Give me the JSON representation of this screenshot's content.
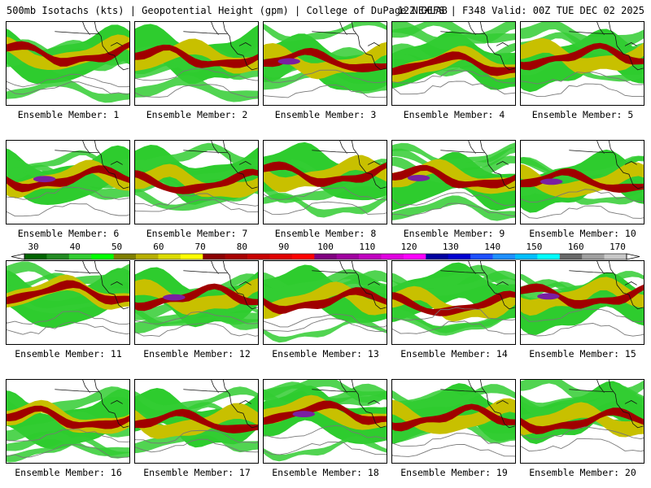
{
  "header": {
    "left": "500mb Isotachs (kts) | Geopotential Height (gpm) | College of DuPage NEXLAB",
    "right": "12Z GEFS | F348 Valid: 00Z TUE DEC 02 2025"
  },
  "members": [
    "Ensemble Member: 1",
    "Ensemble Member: 2",
    "Ensemble Member: 3",
    "Ensemble Member: 4",
    "Ensemble Member: 5",
    "Ensemble Member: 6",
    "Ensemble Member: 7",
    "Ensemble Member: 8",
    "Ensemble Member: 9",
    "Ensemble Member: 10",
    "Ensemble Member: 11",
    "Ensemble Member: 12",
    "Ensemble Member: 13",
    "Ensemble Member: 14",
    "Ensemble Member: 15",
    "Ensemble Member: 16",
    "Ensemble Member: 17",
    "Ensemble Member: 18",
    "Ensemble Member: 19",
    "Ensemble Member: 20"
  ],
  "colorbar": {
    "labels": [
      "30",
      "40",
      "50",
      "60",
      "70",
      "80",
      "90",
      "100",
      "110",
      "120",
      "130",
      "140",
      "150",
      "160",
      "170"
    ],
    "colors": [
      "#006400",
      "#228b22",
      "#32cd32",
      "#00ff00",
      "#808000",
      "#b8b000",
      "#dcdc00",
      "#ffff00",
      "#8b0000",
      "#a80000",
      "#c80000",
      "#e00000",
      "#ff0000",
      "#800080",
      "#a000a0",
      "#c000c0",
      "#e000e0",
      "#ff00ff",
      "#0000a0",
      "#0000d0",
      "#1e50ff",
      "#1e90ff",
      "#00bfff",
      "#00ffff",
      "#696969",
      "#a0a0a0",
      "#c8c8c8"
    ]
  }
}
